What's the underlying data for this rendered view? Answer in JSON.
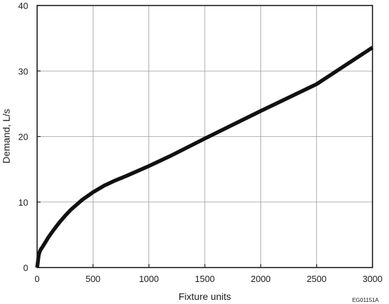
{
  "chart_data": {
    "type": "line",
    "title": "",
    "xlabel": "Fixture units",
    "ylabel": "Demand, L/s",
    "xlim": [
      0,
      3000
    ],
    "ylim": [
      0,
      40
    ],
    "xticks": [
      0,
      500,
      1000,
      1500,
      2000,
      2500,
      3000
    ],
    "yticks": [
      0,
      10,
      20,
      30,
      40
    ],
    "xtick_labels": [
      "0",
      "500",
      "1000",
      "1500",
      "2000",
      "2500",
      "3000"
    ],
    "ytick_labels": [
      "0",
      "10",
      "20",
      "30",
      "40"
    ],
    "grid": true,
    "legend": "none",
    "series": [
      {
        "color": "#111111",
        "x": [
          0,
          5,
          10,
          15,
          20,
          30,
          50,
          75,
          100,
          150,
          200,
          250,
          300,
          400,
          500,
          600,
          700,
          800,
          1000,
          1200,
          1500,
          2000,
          2500,
          3000
        ],
        "y": [
          0,
          0.6,
          1.3,
          1.9,
          2.3,
          2.7,
          3.2,
          3.9,
          4.6,
          5.8,
          6.9,
          7.9,
          8.8,
          10.3,
          11.5,
          12.5,
          13.3,
          14.0,
          15.5,
          17.1,
          19.7,
          23.9,
          28.0,
          33.6
        ]
      }
    ]
  },
  "figure_code": "EG01151A"
}
